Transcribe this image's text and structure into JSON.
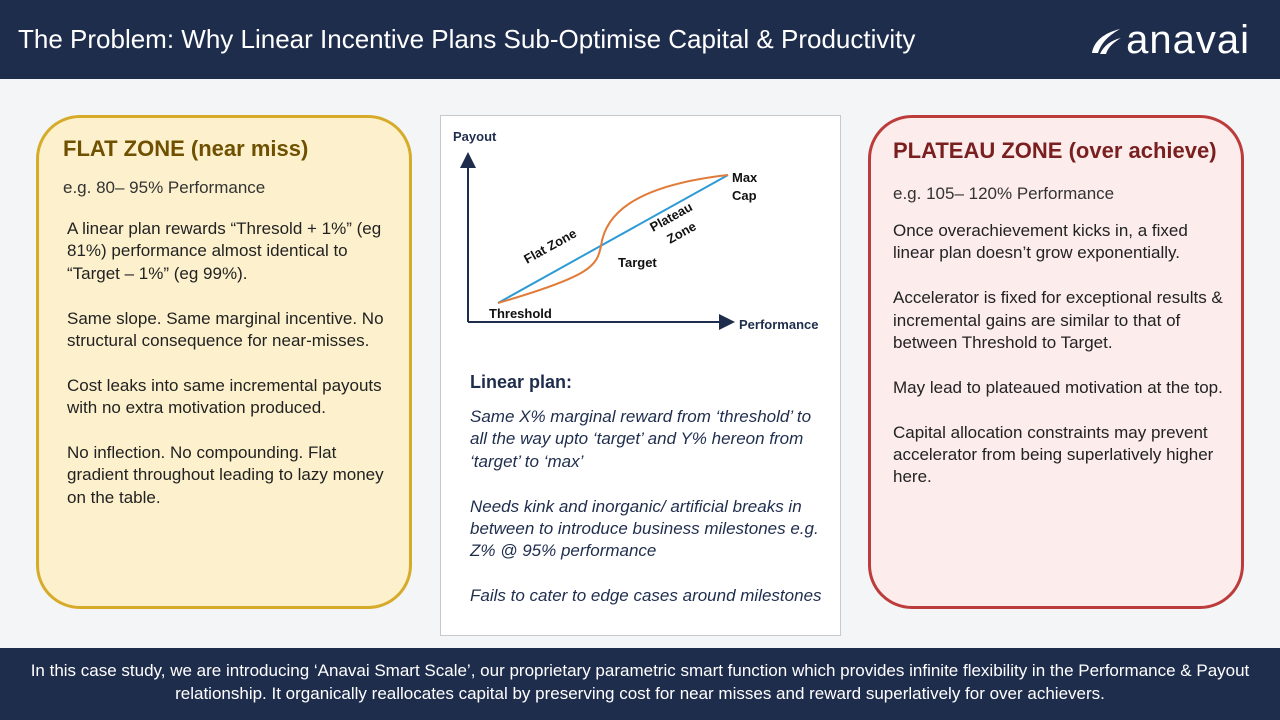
{
  "header": {
    "title": "The Problem: Why Linear Incentive Plans Sub-Optimise Capital & Productivity",
    "logo_text": "anavai",
    "logo_icon": "anavai-swoosh-icon"
  },
  "flat_zone": {
    "title": "FLAT ZONE (near miss)",
    "subtitle": "e.g. 80– 95% Performance",
    "paragraphs": [
      "A linear plan rewards “Thresold + 1%” (eg 81%) performance almost identical to “Target – 1%” (eg 99%).",
      "Same slope. Same marginal incentive. No structural consequence for near-misses.",
      "Cost leaks into same incremental payouts with no extra motivation produced.",
      "No inflection. No compounding. Flat gradient throughout leading to lazy money on the table."
    ]
  },
  "chart": {
    "ylabel": "Payout",
    "xlabel": "Performance",
    "labels": {
      "max_cap_1": "Max",
      "max_cap_2": "Cap",
      "flat_zone": "Flat Zone",
      "plateau_1": "Plateau",
      "plateau_2": "Zone",
      "target": "Target",
      "threshold": "Threshold"
    },
    "colors": {
      "linear": "#2e9bd6",
      "smart": "#e07b3a",
      "axis": "#1f2d4d"
    }
  },
  "linear_plan": {
    "title": "Linear plan:",
    "paragraphs": [
      "Same X% marginal reward from ‘threshold’ to all the way upto ‘target’ and Y% hereon from ‘target’ to ‘max’",
      "Needs kink and inorganic/ artificial breaks in between to introduce business milestones e.g. Z% @ 95% performance",
      "Fails to cater to edge cases around milestones"
    ]
  },
  "plateau_zone": {
    "title": "PLATEAU ZONE (over achieve)",
    "subtitle": "e.g. 105– 120% Performance",
    "paragraphs": [
      "Once overachievement kicks in, a fixed linear plan doesn’t grow exponentially.",
      "Accelerator is fixed for exceptional results & incremental gains are similar to that of between Threshold to Target.",
      "May lead to plateaued motivation at the top.",
      "Capital allocation constraints may prevent accelerator from being superlatively higher here."
    ]
  },
  "footer": {
    "text": "In this case study, we are introducing ‘Anavai Smart Scale’, our proprietary parametric smart function which provides infinite flexibility in the Performance & Payout relationship. It organically reallocates capital by preserving cost for near misses and reward superlatively for over achievers."
  }
}
